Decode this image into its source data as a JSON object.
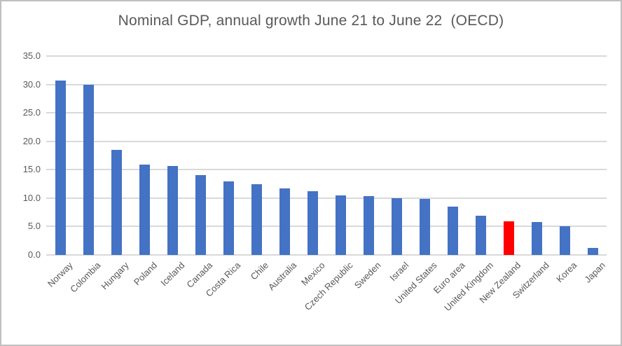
{
  "chart_data": {
    "type": "bar",
    "title": "Nominal GDP, annual growth June 21 to June 22  (OECD)",
    "categories": [
      "Norway",
      "Colombia",
      "Hungary",
      "Poland",
      "Iceland",
      "Canada",
      "Costa Rica",
      "Chile",
      "Australia",
      "Mexico",
      "Czech Republic",
      "Sweden",
      "Israel",
      "United States",
      "Euro area",
      "United Kingdom",
      "New Zealand",
      "Switzerland",
      "Korea",
      "Japan"
    ],
    "values": [
      30.7,
      30.0,
      18.5,
      15.9,
      15.7,
      14.1,
      12.9,
      12.5,
      11.7,
      11.2,
      10.5,
      10.4,
      10.0,
      9.9,
      8.5,
      6.9,
      5.9,
      5.8,
      5.1,
      1.2
    ],
    "highlight_category": "New Zealand",
    "xlabel": "",
    "ylabel": "",
    "ylim": [
      0,
      35
    ],
    "ytick_step": 5,
    "ytick_labels": [
      "35.0",
      "30.0",
      "25.0",
      "20.0",
      "15.0",
      "10.0",
      "5.0",
      "0.0"
    ],
    "grid": "horizontal-only",
    "legend": "none",
    "colors": {
      "bar": "#4472C4",
      "highlight": "#FF0000",
      "gridline": "#D9D9D9",
      "axis_text": "#595959",
      "title_text": "#595959",
      "frame_border": "#BFBFBF",
      "background": "#FFFFFF"
    }
  }
}
